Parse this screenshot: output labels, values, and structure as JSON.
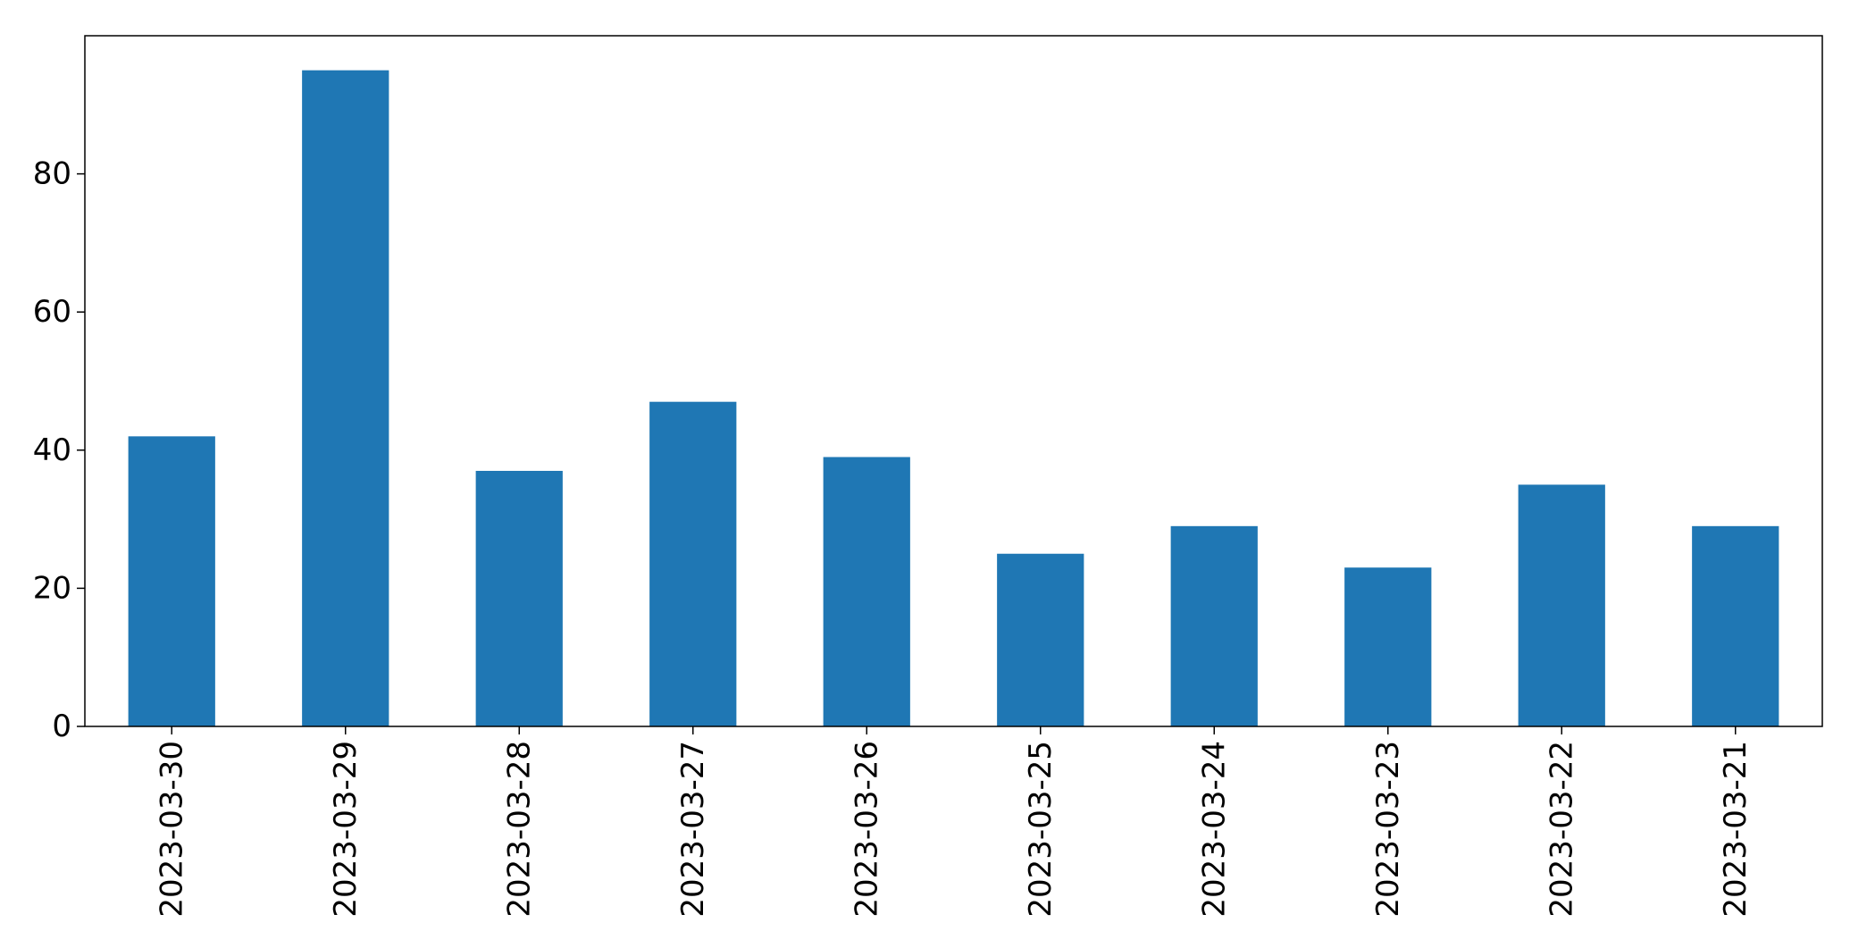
{
  "chart_data": {
    "type": "bar",
    "title": "",
    "xlabel": "",
    "ylabel": "",
    "categories": [
      "2023-03-30",
      "2023-03-29",
      "2023-03-28",
      "2023-03-27",
      "2023-03-26",
      "2023-03-25",
      "2023-03-24",
      "2023-03-23",
      "2023-03-22",
      "2023-03-21"
    ],
    "values": [
      42,
      95,
      37,
      47,
      39,
      25,
      29,
      23,
      35,
      29
    ],
    "ylim": [
      0,
      100
    ],
    "yticks": [
      "0",
      "20",
      "40",
      "60",
      "80"
    ],
    "grid": false,
    "legend": "none",
    "bar_color": "#1f77b4"
  }
}
